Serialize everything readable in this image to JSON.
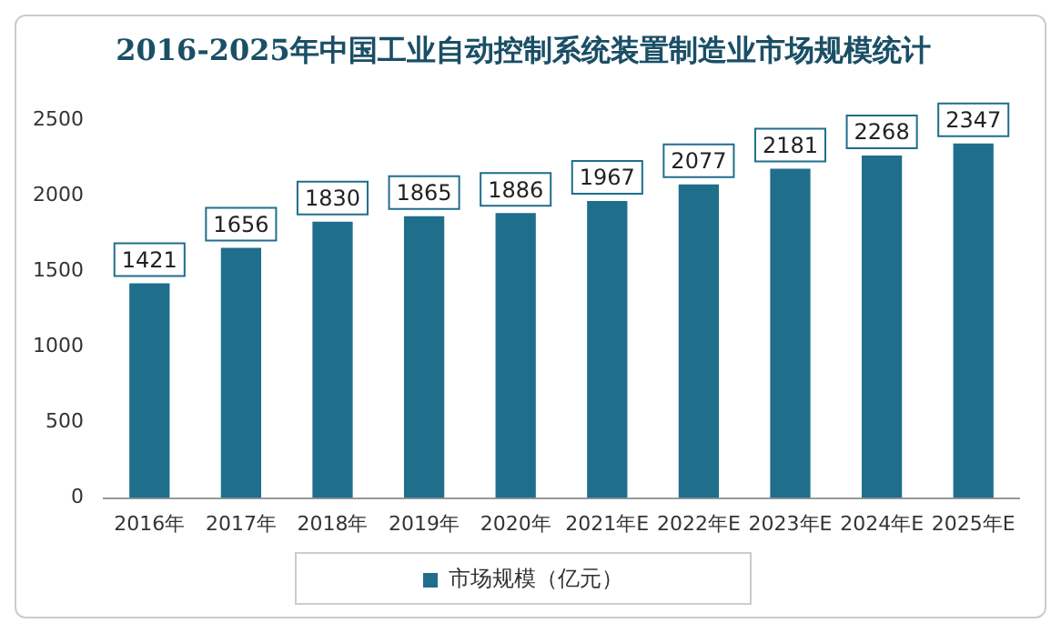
{
  "chart_data": {
    "type": "bar",
    "title": "2016-2025年中国工业自动控制系统装置制造业市场规模统计",
    "categories": [
      "2016年",
      "2017年",
      "2018年",
      "2019年",
      "2020年",
      "2021年E",
      "2022年E",
      "2023年E",
      "2024年E",
      "2025年E"
    ],
    "series": [
      {
        "name": "市场规模（亿元）",
        "color": "#1f6e8c",
        "values": [
          1421,
          1656,
          1830,
          1865,
          1886,
          1967,
          2077,
          2181,
          2268,
          2347
        ]
      }
    ],
    "ylim": [
      0,
      2500
    ],
    "yticks": [
      0,
      500,
      1000,
      1500,
      2000,
      2500
    ],
    "grid": false,
    "legend": "bottom",
    "data_labels": true
  }
}
